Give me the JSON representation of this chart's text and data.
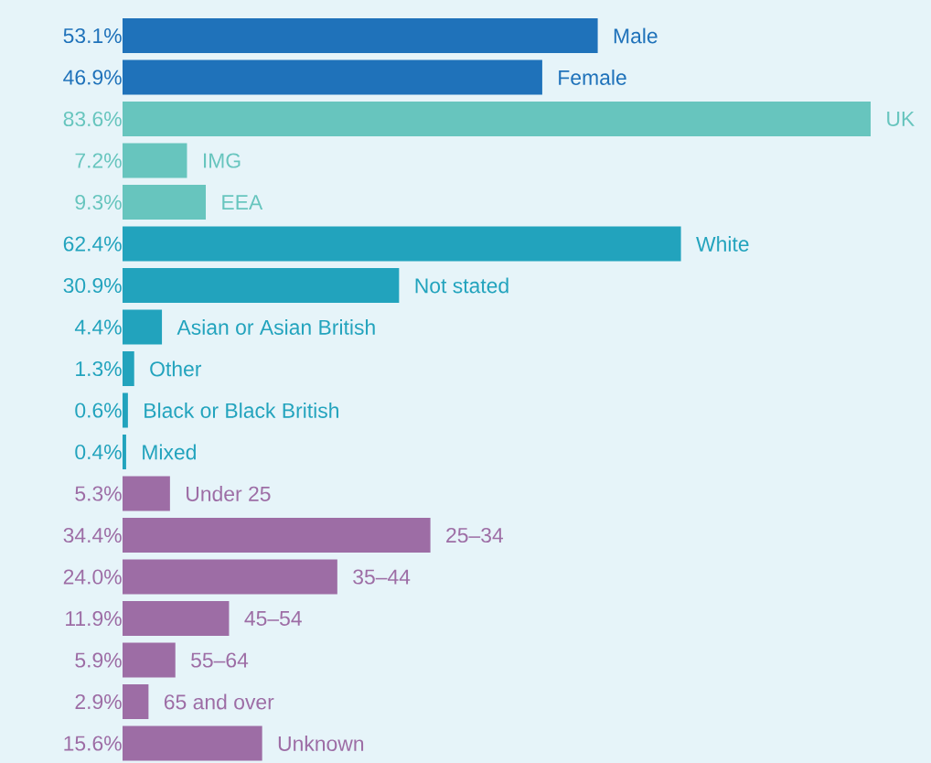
{
  "chart_data": {
    "type": "bar",
    "orientation": "horizontal",
    "categories": [
      "Male",
      "Female",
      "UK",
      "IMG",
      "EEA",
      "White",
      "Not stated",
      "Asian or Asian British",
      "Other",
      "Black or Black British",
      "Mixed",
      "Under 25",
      "25–34",
      "35–44",
      "45–54",
      "55–64",
      "65 and over",
      "Unknown"
    ],
    "values": [
      53.1,
      46.9,
      83.6,
      7.2,
      9.3,
      62.4,
      30.9,
      4.4,
      1.3,
      0.6,
      0.4,
      5.3,
      34.4,
      24.0,
      11.9,
      5.9,
      2.9,
      15.6
    ],
    "value_labels": [
      "53.1%",
      "46.9%",
      "83.6%",
      "7.2%",
      "9.3%",
      "62.4%",
      "30.9%",
      "4.4%",
      "1.3%",
      "0.6%",
      "0.4%",
      "5.3%",
      "34.4%",
      "24.0%",
      "11.9%",
      "5.9%",
      "2.9%",
      "15.6%"
    ],
    "colors": [
      "#1f72ba",
      "#1f72ba",
      "#67c5be",
      "#67c5be",
      "#67c5be",
      "#22a3bd",
      "#22a3bd",
      "#22a3bd",
      "#22a3bd",
      "#22a3bd",
      "#22a3bd",
      "#9d6da5",
      "#9d6da5",
      "#9d6da5",
      "#9d6da5",
      "#9d6da5",
      "#9d6da5",
      "#9d6da5"
    ]
  }
}
